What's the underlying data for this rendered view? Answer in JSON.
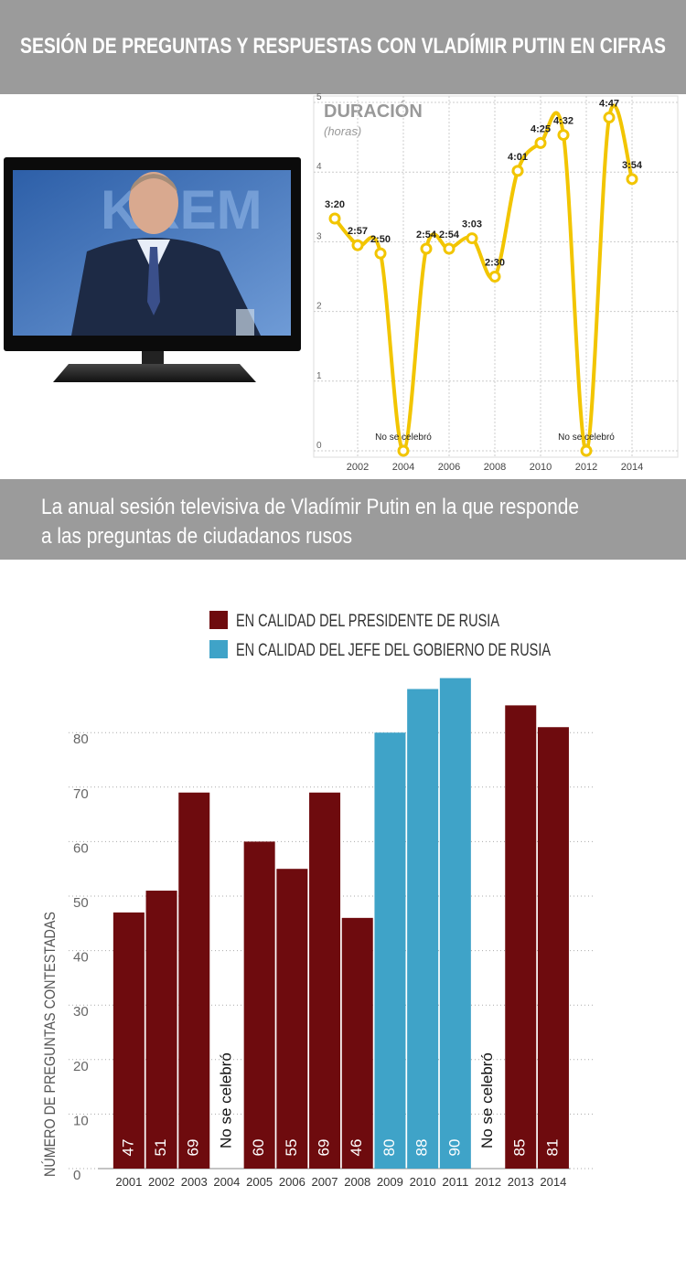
{
  "title": "SESIÓN DE PREGUNTAS Y RESPUESTAS CON VLADÍMIR PUTIN EN CIFRAS",
  "intro": [
    "La anual sesión televisiva de Vladímir Putin en la que responde",
    "a las preguntas de ciudadanos rusos"
  ],
  "chart_data": [
    {
      "type": "line",
      "title": "DURACIÓN",
      "subtitle": "(horas)",
      "color": "#f2c500",
      "x": [
        2001,
        2002,
        2003,
        2004,
        2005,
        2006,
        2007,
        2008,
        2009,
        2010,
        2011,
        2012,
        2013,
        2014
      ],
      "values": [
        3.333,
        2.95,
        2.833,
        0,
        2.9,
        2.9,
        3.05,
        2.5,
        4.017,
        4.417,
        4.533,
        0,
        4.783,
        3.9
      ],
      "value_labels": [
        "3:20",
        "2:57",
        "2:50",
        "No se celebró",
        "2:54",
        "2:54",
        "3:03",
        "2:30",
        "4:01",
        "4:25",
        "4:32",
        "No se celebró",
        "4:47",
        "3:54"
      ],
      "xlim": [
        2000,
        2016
      ],
      "xticks": [
        2002,
        2004,
        2006,
        2008,
        2010,
        2012,
        2014
      ],
      "ylim": [
        0,
        5
      ],
      "yticks": [
        0,
        1,
        2,
        3,
        4,
        5
      ],
      "grid": true
    },
    {
      "type": "bar",
      "ylabel": "NÚMERO DE PREGUNTAS CONTESTADAS",
      "categories": [
        "2001",
        "2002",
        "2003",
        "2004",
        "2005",
        "2006",
        "2007",
        "2008",
        "2009",
        "2010",
        "2011",
        "2012",
        "2013",
        "2014"
      ],
      "series": [
        {
          "name": "EN CALIDAD DEL PRESIDENTE DE RUSIA",
          "color": "#6e0b0e",
          "values": [
            47,
            51,
            69,
            null,
            60,
            55,
            69,
            46,
            null,
            null,
            null,
            null,
            85,
            81
          ]
        },
        {
          "name": "EN CALIDAD DEL JEFE DEL GOBIERNO DE RUSIA",
          "color": "#3fa3c8",
          "values": [
            null,
            null,
            null,
            null,
            null,
            null,
            null,
            null,
            80,
            88,
            90,
            null,
            null,
            null
          ]
        }
      ],
      "annotations": [
        {
          "text": "No se celebró",
          "x": "2004"
        },
        {
          "text": "No se celebró",
          "x": "2012"
        }
      ],
      "ylim": [
        0,
        90
      ],
      "yticks": [
        0,
        10,
        20,
        30,
        40,
        50,
        60,
        70,
        80
      ],
      "grid": true
    }
  ]
}
